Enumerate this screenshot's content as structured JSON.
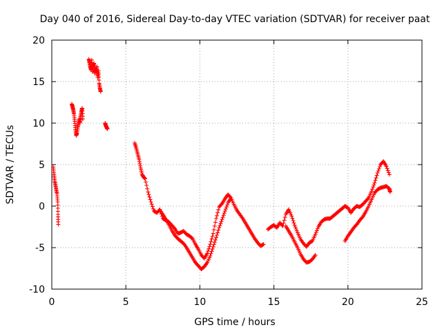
{
  "chart_data": {
    "type": "scatter",
    "title": "Day 040 of 2016, Sidereal Day-to-day VTEC variation (SDTVAR) for receiver paat",
    "xlabel": "GPS time / hours",
    "ylabel": "SDTVAR / TECUs",
    "xlim": [
      0,
      25
    ],
    "ylim": [
      -10,
      20
    ],
    "xticks": [
      "0",
      "5",
      "10",
      "15",
      "20",
      "25"
    ],
    "yticks": [
      "-10",
      "-5",
      "0",
      "5",
      "10",
      "15",
      "20"
    ],
    "grid": true,
    "marker": "plus",
    "color": "#ff0000",
    "series": [
      {
        "name": "paat-seg-1",
        "x": [
          0.1,
          0.15,
          0.2,
          0.25,
          0.3,
          0.35,
          0.4,
          0.42,
          0.44
        ],
        "y": [
          4.7,
          3.8,
          3.0,
          2.5,
          2.0,
          1.5,
          0.5,
          -1.0,
          -2.2
        ]
      },
      {
        "name": "paat-seg-2",
        "x": [
          1.35,
          1.4,
          1.45,
          1.5,
          1.55,
          1.6,
          1.65,
          1.7,
          1.75,
          1.8,
          1.85,
          1.9,
          1.95,
          2.0,
          2.05,
          2.1
        ],
        "y": [
          12.3,
          12.0,
          11.6,
          11.1,
          10.2,
          9.2,
          8.5,
          8.8,
          9.5,
          10.0,
          10.5,
          10.0,
          10.8,
          11.4,
          11.8,
          10.5
        ]
      },
      {
        "name": "paat-seg-3",
        "x": [
          2.5,
          2.55,
          2.6,
          2.65,
          2.7,
          2.75,
          2.8,
          2.85,
          2.9,
          2.95,
          3.0,
          3.05,
          3.1,
          3.15,
          3.2,
          3.25,
          3.3
        ],
        "y": [
          17.7,
          17.3,
          16.8,
          16.4,
          17.6,
          16.2,
          16.9,
          17.2,
          16.0,
          16.5,
          16.2,
          16.8,
          15.5,
          16.3,
          14.8,
          14.2,
          13.8
        ]
      },
      {
        "name": "paat-seg-4",
        "x": [
          3.6,
          3.65,
          3.7,
          3.75
        ],
        "y": [
          10.0,
          9.7,
          9.5,
          9.3
        ]
      },
      {
        "name": "paat-main-upper",
        "x": [
          5.6,
          5.7,
          5.8,
          5.9,
          6.0,
          6.1,
          6.2,
          6.3,
          6.5,
          6.7,
          6.9,
          7.1,
          7.3,
          7.5,
          7.7,
          7.9,
          8.1,
          8.3,
          8.5,
          8.7,
          8.9,
          9.1,
          9.3,
          9.5,
          9.7,
          9.9,
          10.1,
          10.3,
          10.5,
          10.7,
          10.9,
          11.1,
          11.3,
          11.5,
          11.7,
          11.9,
          12.1,
          12.3,
          12.5,
          12.7,
          12.9,
          13.1,
          13.3,
          13.5,
          13.7,
          13.9,
          14.1,
          14.3
        ],
        "y": [
          7.6,
          7.0,
          6.3,
          5.6,
          4.6,
          3.8,
          3.5,
          3.3,
          1.7,
          0.5,
          -0.6,
          -0.8,
          -0.4,
          -1.5,
          -1.7,
          -1.9,
          -2.3,
          -2.7,
          -3.3,
          -3.2,
          -3.0,
          -3.4,
          -3.6,
          -3.9,
          -4.6,
          -5.2,
          -5.9,
          -6.3,
          -5.7,
          -4.6,
          -3.3,
          -1.5,
          -0.1,
          0.3,
          0.9,
          1.4,
          1.0,
          0.2,
          -0.5,
          -1.0,
          -1.5,
          -2.1,
          -2.7,
          -3.3,
          -3.9,
          -4.4,
          -4.8,
          -4.6
        ]
      },
      {
        "name": "paat-main-lower",
        "x": [
          7.3,
          7.5,
          7.7,
          7.9,
          8.1,
          8.3,
          8.5,
          8.7,
          8.9,
          9.1,
          9.3,
          9.5,
          9.7,
          9.9,
          10.1,
          10.3,
          10.5,
          10.7,
          10.9,
          11.1,
          11.3,
          11.5,
          11.7,
          11.9,
          12.1
        ],
        "y": [
          -0.5,
          -1.0,
          -1.6,
          -2.2,
          -2.9,
          -3.5,
          -3.9,
          -4.2,
          -4.5,
          -5.0,
          -5.6,
          -6.2,
          -6.8,
          -7.2,
          -7.6,
          -7.3,
          -6.8,
          -6.0,
          -4.9,
          -3.8,
          -2.6,
          -1.6,
          -0.6,
          0.4,
          1.0
        ]
      },
      {
        "name": "paat-mid",
        "x": [
          14.6,
          14.8,
          15.0,
          15.2,
          15.4,
          15.6,
          15.8,
          16.0,
          16.2,
          16.4,
          16.6,
          16.8,
          17.0,
          17.2,
          17.4,
          17.6,
          17.8,
          18.0,
          18.2,
          18.4,
          18.6,
          18.8
        ],
        "y": [
          -2.8,
          -2.5,
          -2.3,
          -2.6,
          -2.0,
          -2.4,
          -1.0,
          -0.4,
          -1.2,
          -2.3,
          -3.2,
          -4.0,
          -4.5,
          -4.9,
          -4.4,
          -4.2,
          -3.4,
          -2.5,
          -1.9,
          -1.6,
          -1.5,
          -1.5
        ]
      },
      {
        "name": "paat-mid-lower",
        "x": [
          15.8,
          16.0,
          16.2,
          16.4,
          16.6,
          16.8,
          17.0,
          17.2,
          17.4,
          17.6,
          17.8
        ],
        "y": [
          -2.4,
          -3.0,
          -3.6,
          -4.3,
          -5.0,
          -5.8,
          -6.4,
          -6.8,
          -6.7,
          -6.4,
          -5.9
        ]
      },
      {
        "name": "paat-evening",
        "x": [
          18.8,
          19.0,
          19.2,
          19.4,
          19.6,
          19.8,
          20.0,
          20.2,
          20.4,
          20.6,
          20.8,
          21.0,
          21.2,
          21.4,
          21.6,
          21.8,
          22.0,
          22.2,
          22.4,
          22.6,
          22.8
        ],
        "y": [
          -1.5,
          -1.2,
          -0.9,
          -0.6,
          -0.3,
          0.0,
          -0.2,
          -0.8,
          -0.3,
          0.0,
          -0.1,
          0.2,
          0.6,
          1.0,
          1.8,
          2.8,
          4.0,
          5.0,
          5.4,
          4.8,
          3.8
        ]
      },
      {
        "name": "paat-evening-lower",
        "x": [
          19.8,
          20.0,
          20.2,
          20.4,
          20.6,
          20.8,
          21.0,
          21.2,
          21.4,
          21.6,
          21.8,
          22.0,
          22.2,
          22.4,
          22.6,
          22.8,
          22.85
        ],
        "y": [
          -4.2,
          -3.6,
          -3.1,
          -2.6,
          -2.2,
          -1.7,
          -1.3,
          -0.7,
          0.0,
          0.8,
          1.6,
          2.0,
          2.2,
          2.3,
          2.4,
          2.1,
          1.7
        ]
      }
    ]
  }
}
